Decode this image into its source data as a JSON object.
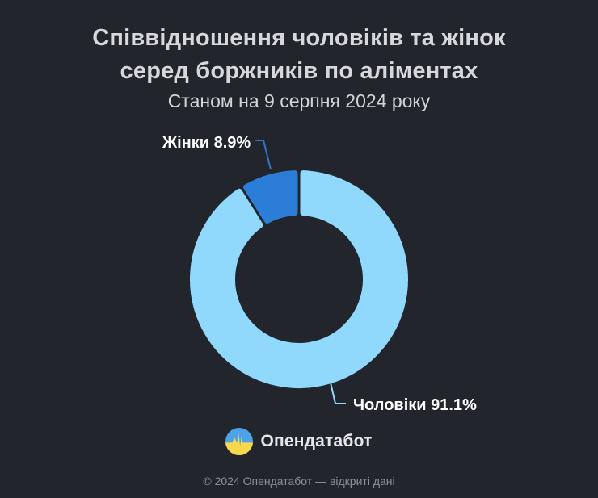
{
  "title": {
    "line1": "Співвідношення чоловіків та жінок",
    "line2": "серед боржників по аліментах",
    "subtitle": "Станом на 9 серпня 2024 року"
  },
  "chart_data": {
    "type": "pie",
    "donut": true,
    "title": "Співвідношення чоловіків та жінок серед боржників по аліментах",
    "subtitle": "Станом на 9 серпня 2024 року",
    "unit": "%",
    "start_angle_deg": 0,
    "direction": "clockwise",
    "segments": [
      {
        "key": "men",
        "label": "Чоловіки",
        "value": 91.1,
        "color": "#90d8fc"
      },
      {
        "key": "women",
        "label": "Жінки",
        "value": 8.9,
        "color": "#2b7dd8"
      }
    ],
    "annotations": {
      "women": "Жінки 8.9%",
      "men": "Чоловіки 91.1%"
    },
    "leader_colors": {
      "women": "#3273c6",
      "men": "#8fd7fb"
    },
    "legend_position": "none",
    "grid": false
  },
  "branding": {
    "name": "Опендатабот",
    "logo_colors": {
      "blue": "#4da3e8",
      "yellow": "#f7d84b"
    }
  },
  "footer": {
    "text": "© 2024 Опендатабот — відкриті дані"
  },
  "theme": {
    "background": "#22262c",
    "title_color": "#d6d8da",
    "label_color": "#ffffff",
    "footer_color": "#8d9096"
  }
}
